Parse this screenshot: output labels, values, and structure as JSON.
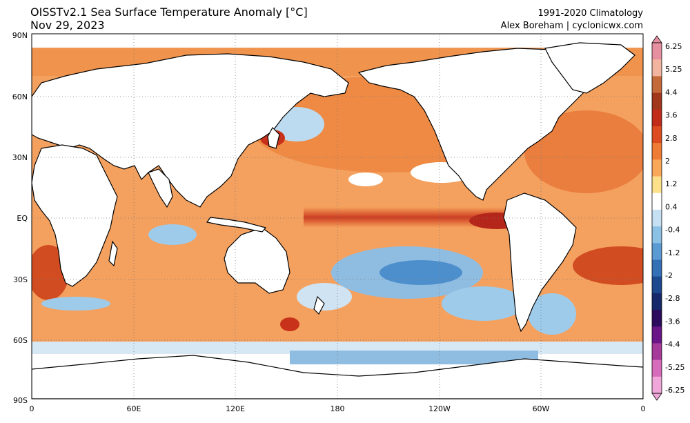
{
  "title": {
    "line1": "OISSTv2.1 Sea Surface Temperature Anomaly [°C]",
    "line2": "Nov 29, 2023"
  },
  "credit": {
    "line1": "1991-2020 Climatology",
    "line2": "Alex Boreham | cyclonicwx.com"
  },
  "map": {
    "lat_ticks": [
      "90N",
      "60N",
      "30N",
      "EQ",
      "30S",
      "60S",
      "90S"
    ],
    "lon_ticks": [
      "0",
      "60E",
      "120E",
      "180",
      "120W",
      "60W",
      "0"
    ],
    "colors": {
      "ocean_warm": "#f7a25a",
      "ocean_hot": "#e8672e",
      "ocean_very_hot": "#c9321a",
      "ocean_neutral": "#ffffff",
      "ocean_cool": "#9ecbea",
      "ocean_cold": "#4d8fcc",
      "ocean_very_cold": "#1f4f99",
      "land": "#ffffff",
      "coast": "#000000"
    }
  },
  "colorbar": {
    "labels": [
      "6.25",
      "5.25",
      "4.4",
      "3.6",
      "2.8",
      "2",
      "1.2",
      "0.4",
      "-0.4",
      "-1.2",
      "-2",
      "-2.8",
      "-3.6",
      "-4.4",
      "-5.25",
      "-6.25"
    ],
    "colors": [
      "#e58fa1",
      "#f2b49e",
      "#c46a3a",
      "#a1381b",
      "#c02c19",
      "#dd4c20",
      "#ef7c34",
      "#f9a85a",
      "#fde08a",
      "#ffffff",
      "#c5e0f2",
      "#8cc1e6",
      "#5a9bd4",
      "#3370b5",
      "#1d4a8f",
      "#16296b",
      "#2c0a5e",
      "#6a1689",
      "#a53a9a",
      "#d66cbb",
      "#f0a6d8"
    ]
  }
}
